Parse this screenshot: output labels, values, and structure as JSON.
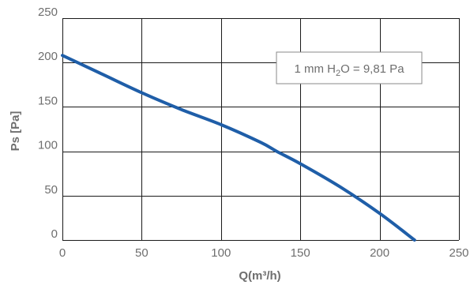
{
  "chart_data": {
    "type": "line",
    "title": "",
    "xlabel": "Q(m³/h)",
    "ylabel": "Ps [Pa]",
    "xlim": [
      0,
      250
    ],
    "ylim": [
      0,
      250
    ],
    "x_ticks": [
      0,
      50,
      100,
      150,
      200,
      250
    ],
    "y_ticks": [
      0,
      50,
      100,
      150,
      200,
      250
    ],
    "x_tick_labels": [
      "0",
      "50",
      "100",
      "150",
      "200",
      "250"
    ],
    "y_tick_labels": [
      "0",
      "50",
      "100",
      "150",
      "200",
      "250"
    ],
    "grid": true,
    "legend": "none",
    "annotation": {
      "prefix": "1 mm H",
      "subscript": "2",
      "suffix": "O = 9,81 Pa"
    },
    "series": [
      {
        "color": "#1f5ea8",
        "x": [
          0,
          25,
          50,
          75,
          100,
          125,
          135,
          150,
          175,
          200,
          222
        ],
        "y": [
          208,
          187,
          166,
          147,
          130,
          110,
          100,
          86,
          60,
          30,
          0
        ]
      }
    ]
  }
}
